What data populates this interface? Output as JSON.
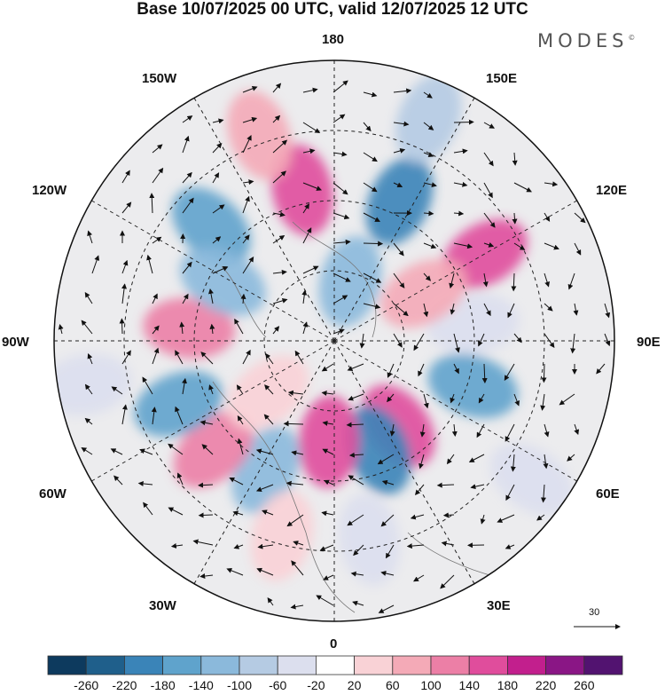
{
  "title": "Base 10/07/2025 00 UTC, valid 12/07/2025 12 UTC",
  "brand": "MODES",
  "brand_mark": "©",
  "map_labels": {
    "top": "180",
    "bottom": "0",
    "left": "90W",
    "right": "90E",
    "w150": "150W",
    "e150": "150E",
    "w120": "120W",
    "e120": "120E",
    "w60": "60W",
    "e60": "60E",
    "w30": "30W",
    "e30": "30E"
  },
  "reference_vector_label": "30",
  "colorbar": {
    "colors": [
      "#0d3a5e",
      "#1f5f8b",
      "#3a84b8",
      "#5fa3cc",
      "#8bb9db",
      "#b5cbe3",
      "#dcdfee",
      "#ffffff",
      "#f9d2d6",
      "#f4aab7",
      "#ec7fa6",
      "#e04d9c",
      "#c21f8d",
      "#8a1685",
      "#521370"
    ],
    "labels": [
      "-260",
      "-220",
      "-180",
      "-140",
      "-100",
      "-60",
      "-20",
      "20",
      "60",
      "100",
      "140",
      "180",
      "220",
      "260"
    ]
  },
  "anomaly_cells": [
    {
      "r": 0.22,
      "th": 195,
      "v": -3
    },
    {
      "r": 0.55,
      "th": 205,
      "v": -5
    },
    {
      "r": 0.55,
      "th": 168,
      "v": 4
    },
    {
      "r": 0.78,
      "th": 160,
      "v": 2
    },
    {
      "r": 0.6,
      "th": 133,
      "v": -4
    },
    {
      "r": 0.86,
      "th": 203,
      "v": -2
    },
    {
      "r": 0.62,
      "th": 240,
      "v": 4
    },
    {
      "r": 0.5,
      "th": 263,
      "v": -1
    },
    {
      "r": 0.36,
      "th": 242,
      "v": 2
    },
    {
      "r": 0.52,
      "th": 288,
      "v": -4
    },
    {
      "r": 0.38,
      "th": 323,
      "v": 4
    },
    {
      "r": 0.42,
      "th": 338,
      "v": -5
    },
    {
      "r": 0.36,
      "th": 3,
      "v": 4
    },
    {
      "r": 0.52,
      "th": 28,
      "v": -3
    },
    {
      "r": 0.58,
      "th": 48,
      "v": 3
    },
    {
      "r": 0.6,
      "th": 68,
      "v": -4
    },
    {
      "r": 0.52,
      "th": 95,
      "v": 3
    },
    {
      "r": 0.45,
      "th": 118,
      "v": -3
    },
    {
      "r": 0.3,
      "th": 52,
      "v": 1
    },
    {
      "r": 0.72,
      "th": 350,
      "v": -1
    },
    {
      "r": 0.86,
      "th": 305,
      "v": -1
    },
    {
      "r": 0.9,
      "th": 80,
      "v": -1
    },
    {
      "r": 0.72,
      "th": 15,
      "v": 1
    }
  ]
}
